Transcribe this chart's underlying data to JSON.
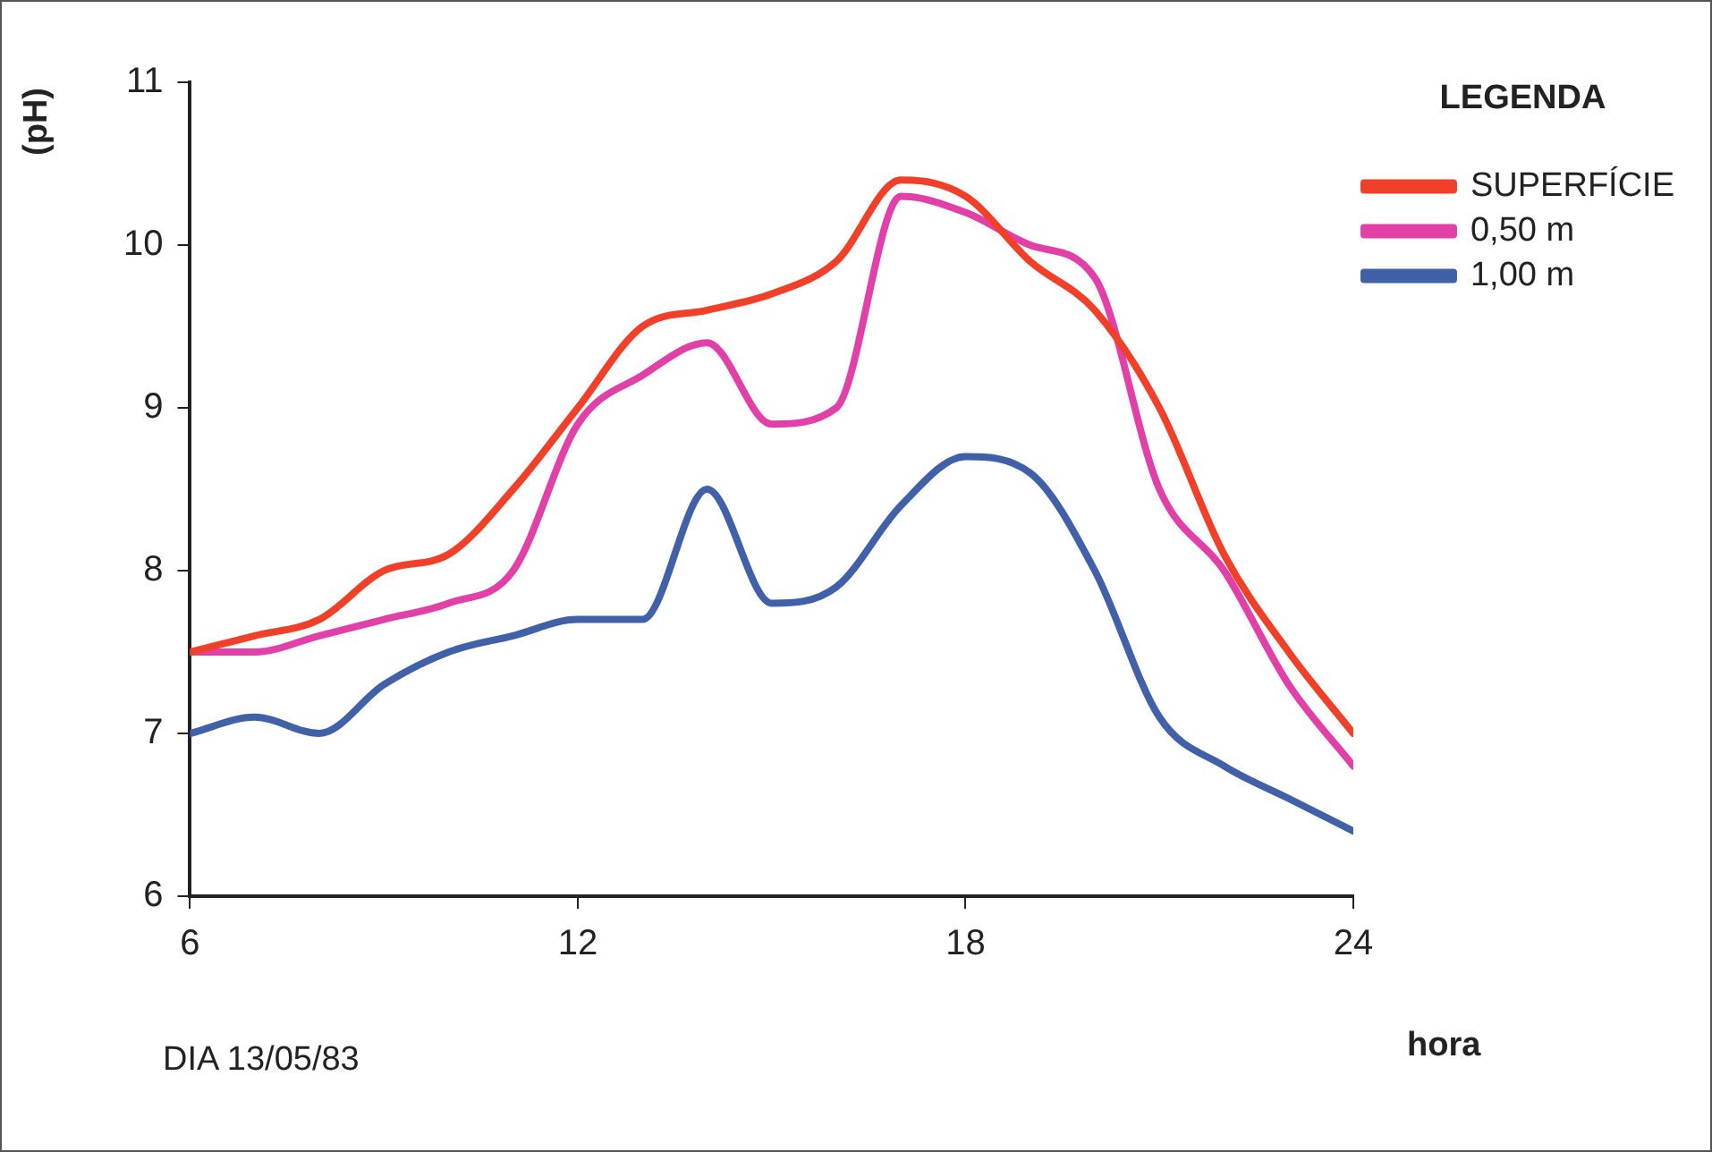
{
  "chart_data": {
    "type": "line",
    "xlabel": "hora",
    "ylabel": "(pH)",
    "legend_title": "LEGENDA",
    "annotations": [
      "DIA 13/05/83"
    ],
    "x": [
      6,
      7,
      8,
      9,
      10,
      11,
      12,
      13,
      14,
      15,
      16,
      17,
      18,
      19,
      20,
      21,
      22,
      23,
      24
    ],
    "series": [
      {
        "name": "SUPERFÍCIE",
        "color": "#f0402a",
        "values": [
          7.5,
          7.6,
          7.7,
          8.0,
          8.1,
          8.5,
          9.0,
          9.5,
          9.6,
          9.7,
          9.9,
          10.4,
          10.3,
          9.9,
          9.6,
          9.0,
          8.1,
          7.5,
          7.0
        ]
      },
      {
        "name": "0,50 m",
        "color": "#e040a8",
        "values": [
          7.5,
          7.5,
          7.6,
          7.7,
          7.8,
          8.0,
          8.9,
          9.2,
          9.4,
          8.9,
          9.0,
          10.3,
          10.2,
          10.0,
          9.8,
          8.5,
          8.0,
          7.3,
          6.8
        ]
      },
      {
        "name": "1,00 m",
        "color": "#4060a8",
        "values": [
          7.0,
          7.1,
          7.0,
          7.3,
          7.5,
          7.6,
          7.7,
          7.7,
          8.5,
          7.8,
          7.9,
          8.4,
          8.7,
          8.6,
          8.0,
          7.1,
          6.8,
          6.6,
          6.4
        ]
      }
    ],
    "xlim": [
      6,
      24
    ],
    "xticks": [
      6,
      12,
      18,
      24
    ],
    "ylim": [
      6,
      11
    ],
    "yticks": [
      6,
      7,
      8,
      9,
      10,
      11
    ],
    "grid": false,
    "legend": "top right",
    "marker": "none",
    "line_style": "solid"
  }
}
